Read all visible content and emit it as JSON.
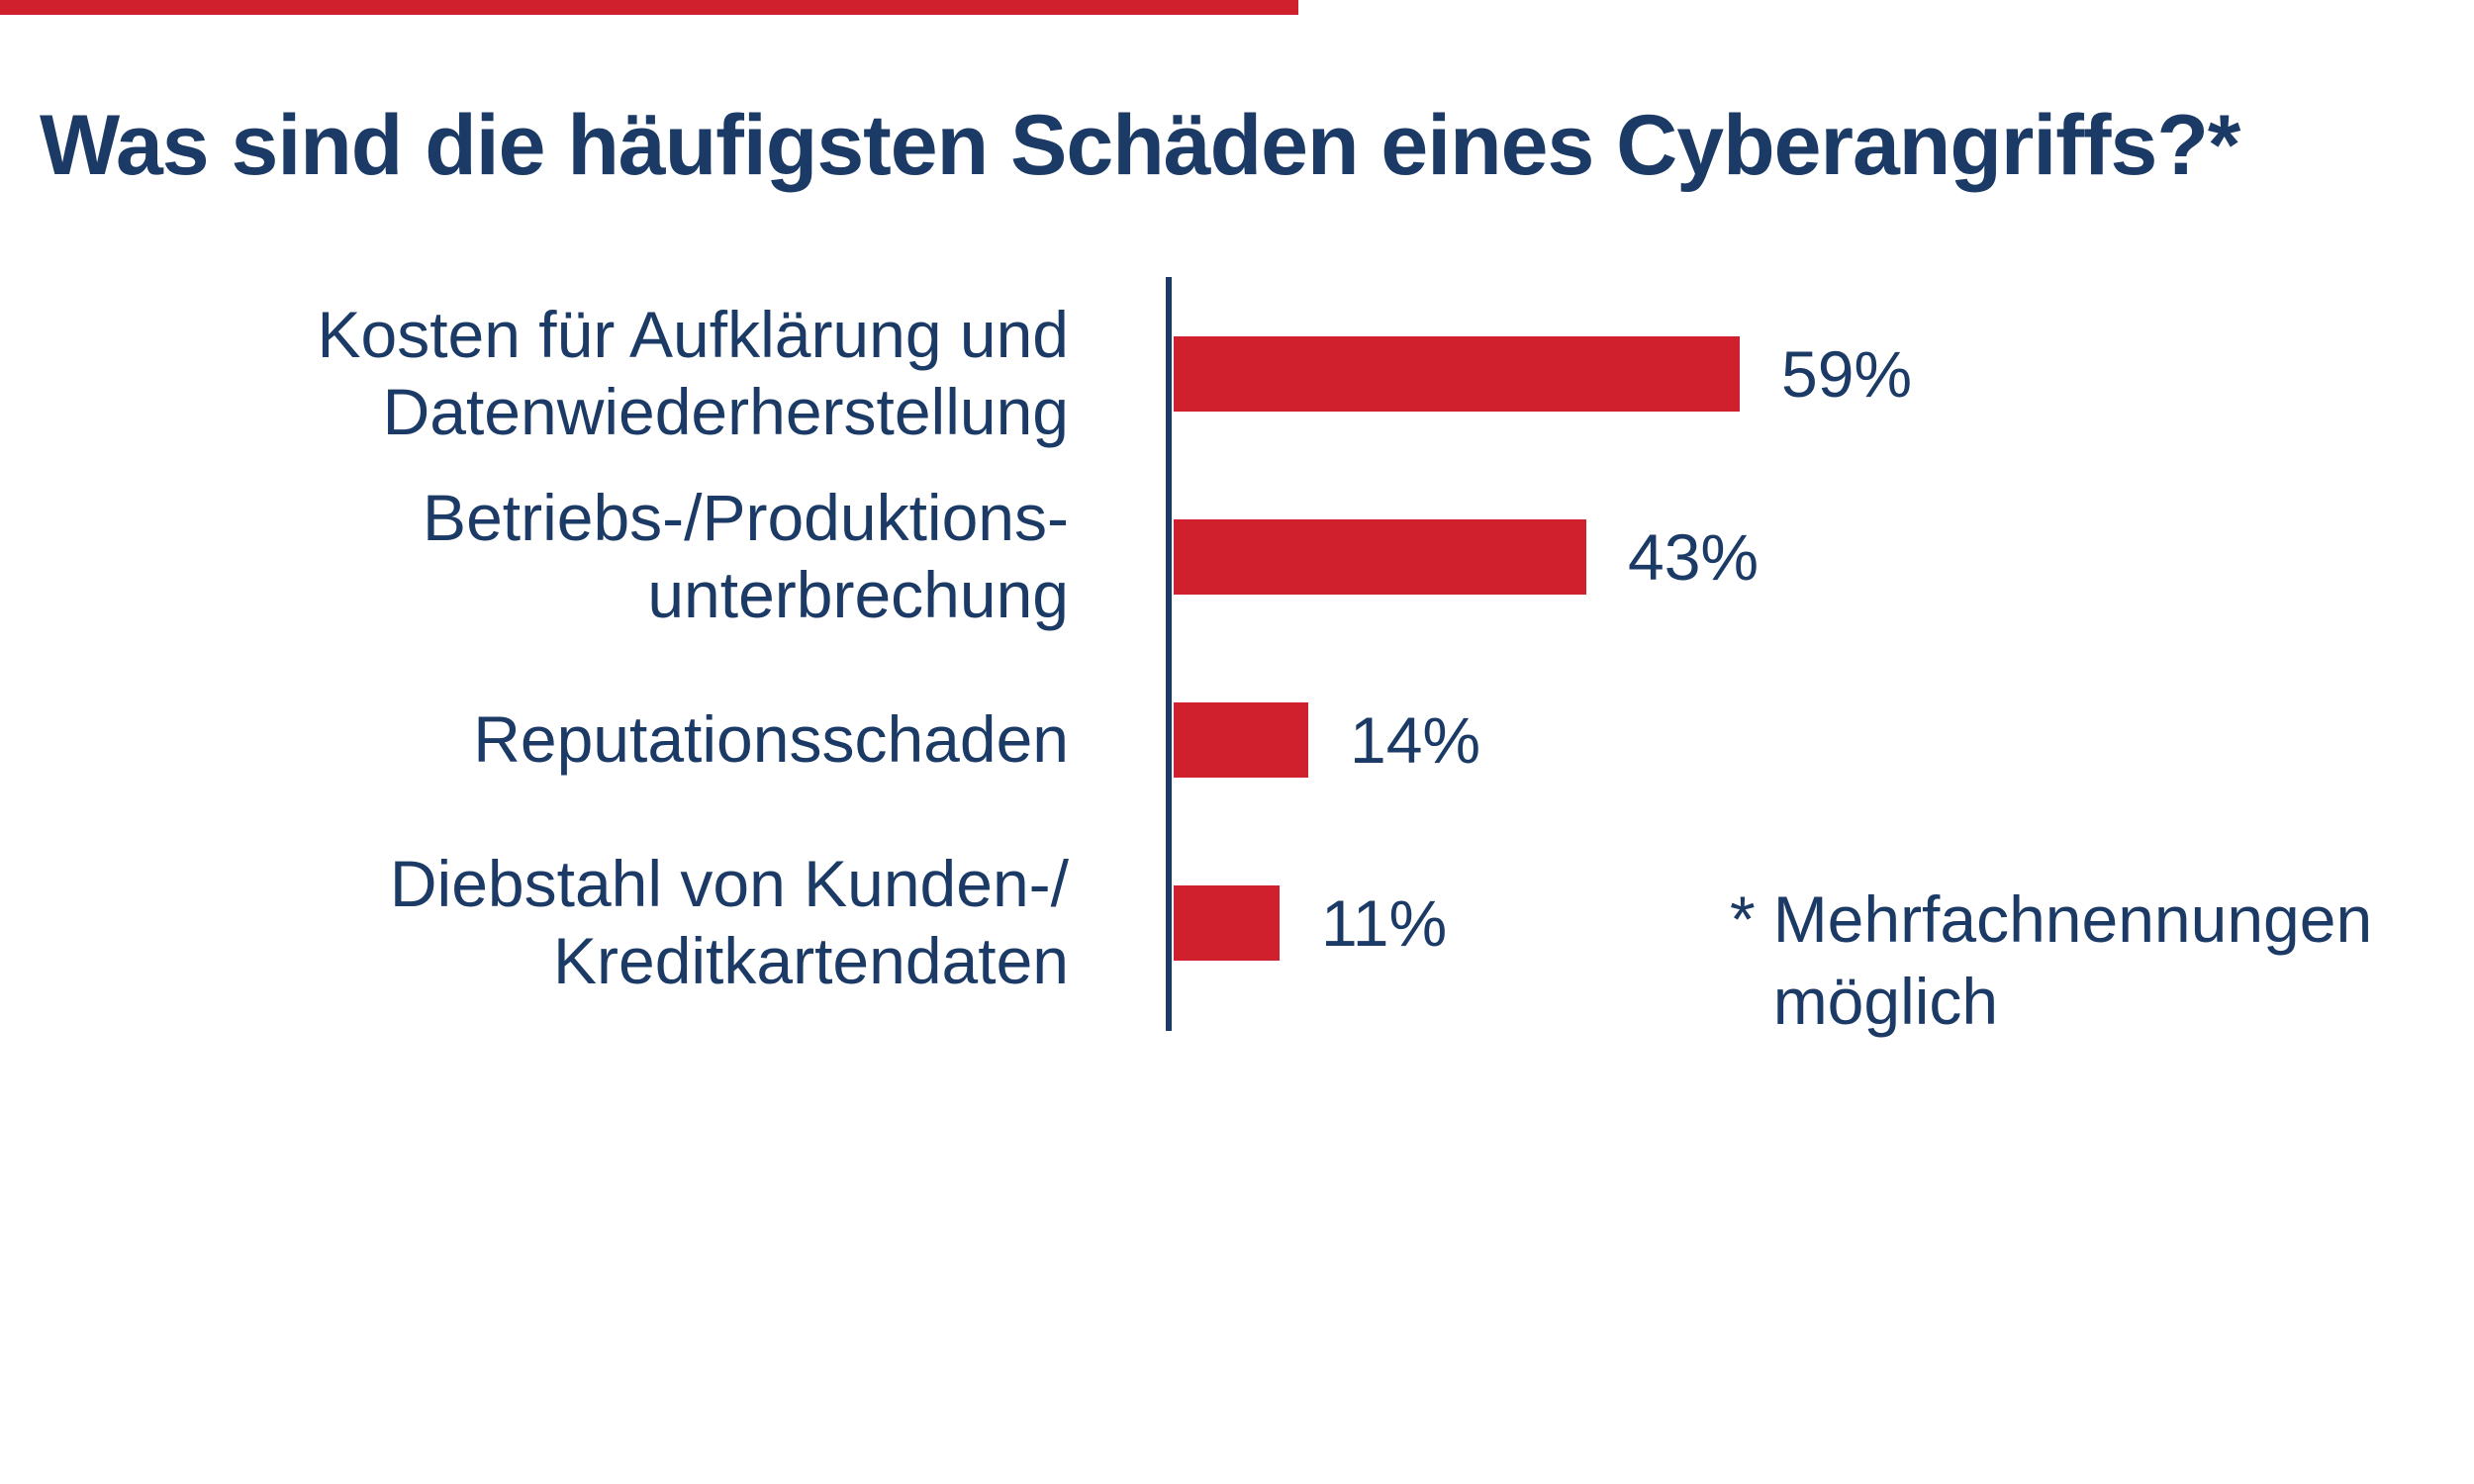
{
  "colors": {
    "accent": "#d0202e",
    "text": "#1b3a66"
  },
  "title": "Was sind die häufigsten Schäden eines Cyberangriffs?*",
  "chart_data": {
    "type": "bar",
    "orientation": "horizontal",
    "title": "Was sind die häufigsten Schäden eines Cyberangriffs?*",
    "categories": [
      "Kosten für Aufklärung und\nDatenwiederherstellung",
      "Betriebs-/Produktions-\nunterbrechung",
      "Reputationsschaden",
      "Diebstahl von Kunden-/\nKreditkartendaten"
    ],
    "values": [
      59,
      43,
      14,
      11
    ],
    "value_labels": [
      "59%",
      "43%",
      "14%",
      "11%"
    ],
    "unit": "%",
    "xlim": [
      0,
      62
    ],
    "grid": false,
    "legend": false,
    "footnote_marker": "*",
    "footnote_text": "Mehrfachnennungen\nmöglich"
  }
}
